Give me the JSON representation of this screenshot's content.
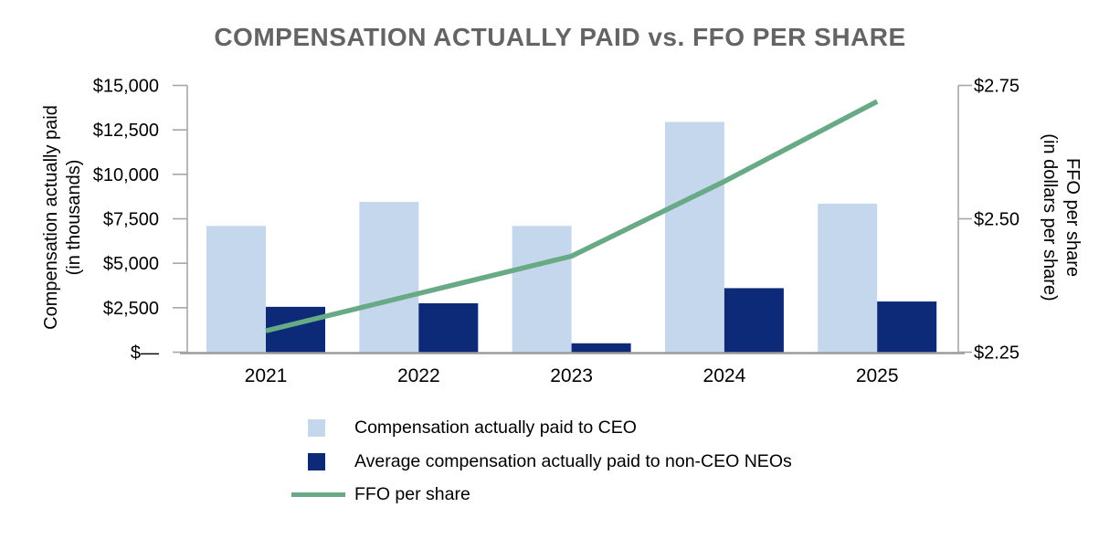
{
  "title": "COMPENSATION ACTUALLY PAID vs. FFO PER SHARE",
  "chart_data": {
    "type": "combo-bar-line",
    "title": "COMPENSATION ACTUALLY PAID vs. FFO PER SHARE",
    "categories": [
      "2021",
      "2022",
      "2023",
      "2024",
      "2025"
    ],
    "bar_series": [
      {
        "name": "Compensation actually paid to CEO",
        "axis": "left",
        "color": "#c5d7ec",
        "values": [
          7100,
          8450,
          7100,
          12950,
          8350
        ]
      },
      {
        "name": "Average compensation actually paid to non-CEO NEOs",
        "axis": "left",
        "color": "#0c2a77",
        "values": [
          2550,
          2750,
          500,
          3600,
          2850
        ]
      }
    ],
    "line_series": {
      "name": "FFO per share",
      "axis": "right",
      "color": "#68aa86",
      "values": [
        2.29,
        2.36,
        2.43,
        2.57,
        2.72
      ]
    },
    "y_left_axis": {
      "title_line1": "Compensation actually paid",
      "title_line2": "(in thousands)",
      "min": 0,
      "max": 15000,
      "step": 2500,
      "tick_labels": [
        "$—",
        "$2,500",
        "$5,000",
        "$7,500",
        "$10,000",
        "$12,500",
        "$15,000"
      ]
    },
    "y_right_axis": {
      "title_line1": "FFO per share",
      "title_line2": "(in dollars per share)",
      "min": 2.25,
      "max": 2.75,
      "step": 0.25,
      "tick_labels": [
        "$2.25",
        "$2.50",
        "$2.75"
      ]
    },
    "grid": false,
    "legend_position": "bottom-left",
    "axis_color": "#a6a6a6",
    "baseline_color": "#9b9b9b",
    "title_color": "#646464",
    "text_color": "#000000"
  }
}
